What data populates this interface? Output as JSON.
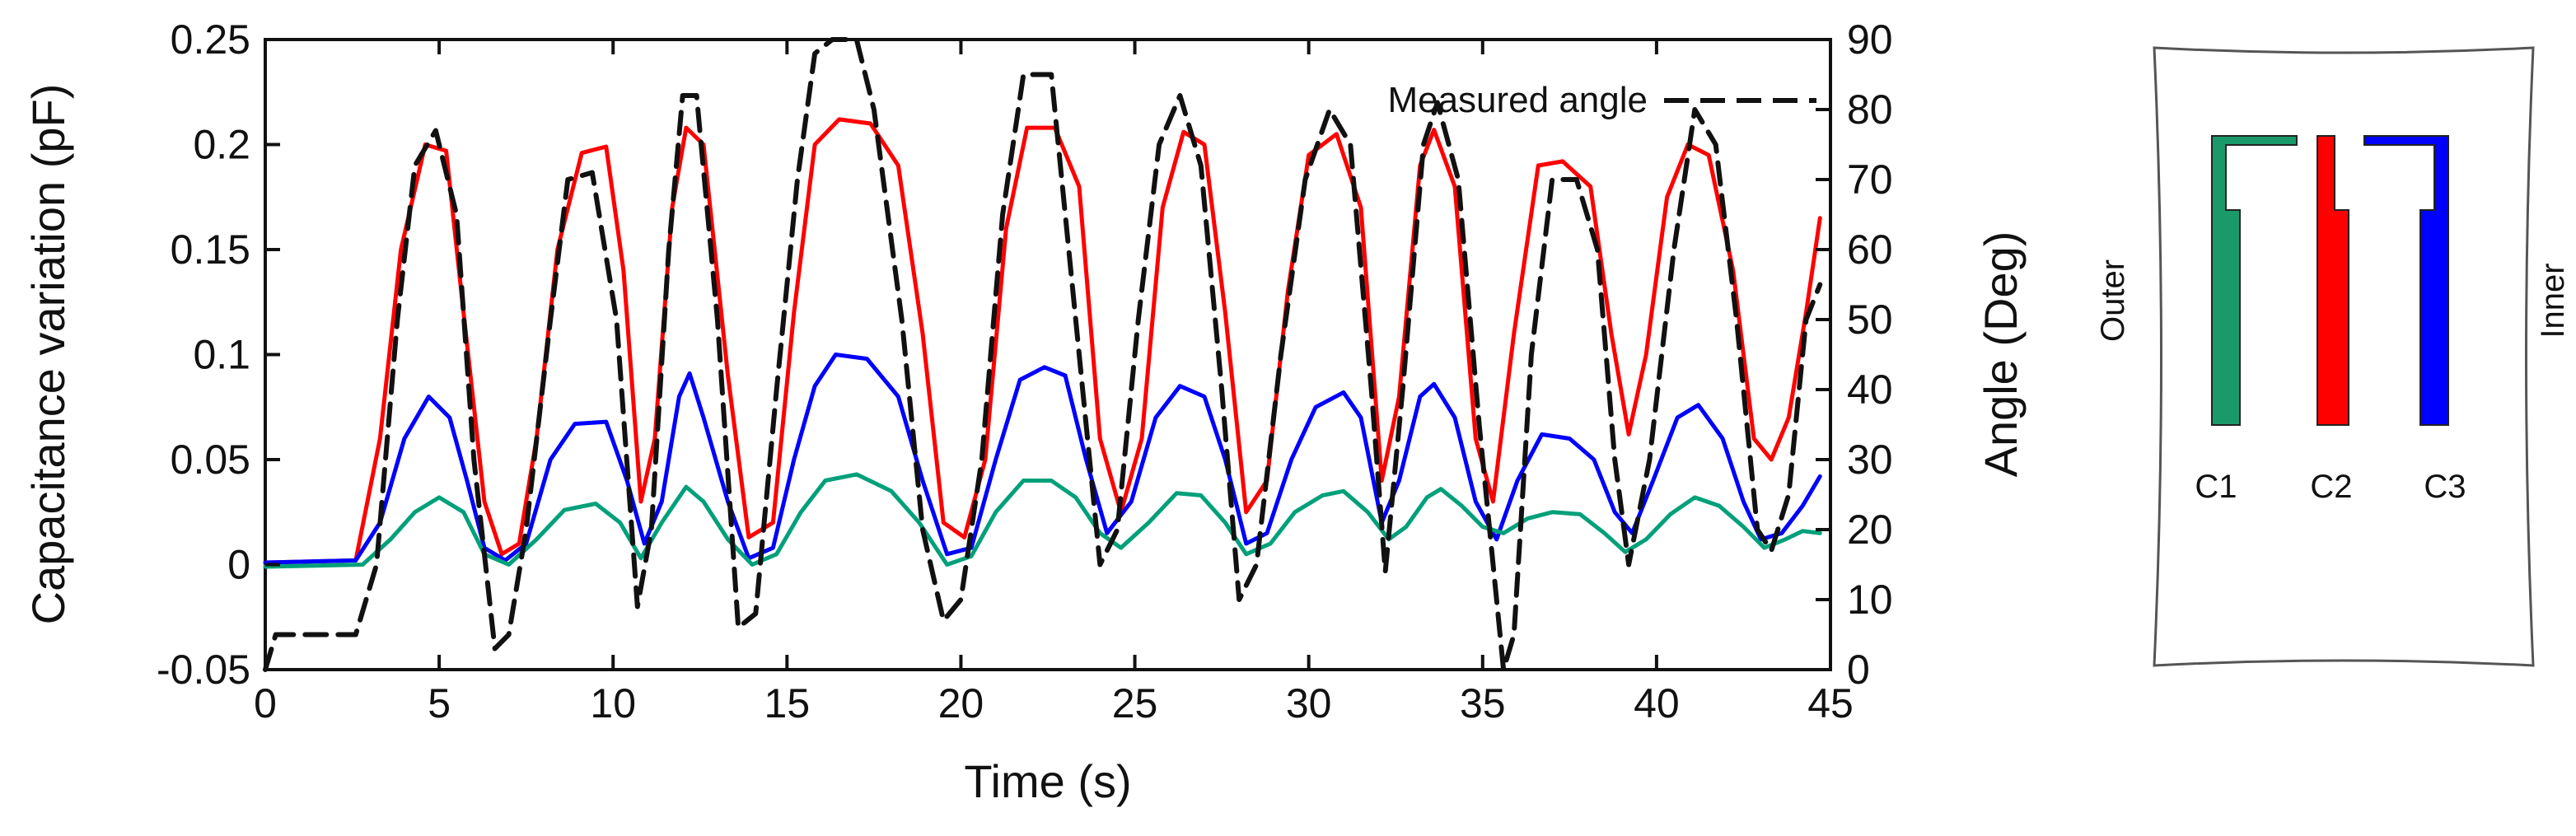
{
  "chart_data": {
    "type": "line",
    "title": "",
    "xlabel": "Time (s)",
    "ylabel": "Capacitance variation (pF)",
    "y2label": "Angle (Deg)",
    "xlim": [
      0,
      45
    ],
    "ylim": [
      -0.05,
      0.25
    ],
    "y2lim": [
      0,
      90
    ],
    "xticks": [
      0,
      5,
      10,
      15,
      20,
      25,
      30,
      35,
      40,
      45
    ],
    "xtick_labels": [
      "0",
      "5",
      "10",
      "15",
      "20",
      "25",
      "30",
      "35",
      "40",
      "45"
    ],
    "yticks": [
      -0.05,
      0,
      0.05,
      0.1,
      0.15,
      0.2,
      0.25
    ],
    "ytick_labels": [
      "-0.05",
      "0",
      "0.05",
      "0.1",
      "0.15",
      "0.2",
      "0.25"
    ],
    "y2ticks": [
      0,
      10,
      20,
      30,
      40,
      50,
      60,
      70,
      80,
      90
    ],
    "y2tick_labels": [
      "0",
      "10",
      "20",
      "30",
      "40",
      "50",
      "60",
      "70",
      "80",
      "90"
    ],
    "grid": false,
    "legend_position": "top-right",
    "legend_label": "Measured angle",
    "series": [
      {
        "name": "C2",
        "color": "#ff0000",
        "axis": "left",
        "style": "solid",
        "points": [
          [
            0,
            0.001
          ],
          [
            2.6,
            0.002
          ],
          [
            3.3,
            0.06
          ],
          [
            3.9,
            0.15
          ],
          [
            4.6,
            0.2
          ],
          [
            5.2,
            0.197
          ],
          [
            5.7,
            0.12
          ],
          [
            6.3,
            0.03
          ],
          [
            6.8,
            0.005
          ],
          [
            7.3,
            0.01
          ],
          [
            7.8,
            0.06
          ],
          [
            8.4,
            0.15
          ],
          [
            9.1,
            0.196
          ],
          [
            9.8,
            0.199
          ],
          [
            10.3,
            0.14
          ],
          [
            10.8,
            0.03
          ],
          [
            11.2,
            0.06
          ],
          [
            11.7,
            0.17
          ],
          [
            12.1,
            0.208
          ],
          [
            12.6,
            0.2
          ],
          [
            13.3,
            0.09
          ],
          [
            13.9,
            0.013
          ],
          [
            14.6,
            0.02
          ],
          [
            15.2,
            0.12
          ],
          [
            15.8,
            0.2
          ],
          [
            16.5,
            0.212
          ],
          [
            17.4,
            0.21
          ],
          [
            18.2,
            0.19
          ],
          [
            18.9,
            0.11
          ],
          [
            19.5,
            0.02
          ],
          [
            20.1,
            0.013
          ],
          [
            20.7,
            0.05
          ],
          [
            21.3,
            0.16
          ],
          [
            21.9,
            0.208
          ],
          [
            22.7,
            0.208
          ],
          [
            23.4,
            0.18
          ],
          [
            24.0,
            0.06
          ],
          [
            24.6,
            0.025
          ],
          [
            25.2,
            0.06
          ],
          [
            25.8,
            0.17
          ],
          [
            26.4,
            0.206
          ],
          [
            27.0,
            0.2
          ],
          [
            27.6,
            0.12
          ],
          [
            28.2,
            0.025
          ],
          [
            28.8,
            0.04
          ],
          [
            29.4,
            0.13
          ],
          [
            30.0,
            0.195
          ],
          [
            30.8,
            0.205
          ],
          [
            31.5,
            0.17
          ],
          [
            32.1,
            0.04
          ],
          [
            32.6,
            0.08
          ],
          [
            33.2,
            0.19
          ],
          [
            33.6,
            0.207
          ],
          [
            34.2,
            0.18
          ],
          [
            34.8,
            0.06
          ],
          [
            35.3,
            0.03
          ],
          [
            35.9,
            0.11
          ],
          [
            36.6,
            0.19
          ],
          [
            37.3,
            0.192
          ],
          [
            38.1,
            0.18
          ],
          [
            38.7,
            0.11
          ],
          [
            39.2,
            0.062
          ],
          [
            39.7,
            0.1
          ],
          [
            40.3,
            0.175
          ],
          [
            40.9,
            0.2
          ],
          [
            41.5,
            0.195
          ],
          [
            42.2,
            0.14
          ],
          [
            42.8,
            0.06
          ],
          [
            43.3,
            0.05
          ],
          [
            43.8,
            0.07
          ],
          [
            44.3,
            0.12
          ],
          [
            44.7,
            0.165
          ]
        ]
      },
      {
        "name": "C3",
        "color": "#0000ff",
        "axis": "left",
        "style": "solid",
        "points": [
          [
            0,
            0.001
          ],
          [
            2.6,
            0.002
          ],
          [
            3.3,
            0.02
          ],
          [
            4.0,
            0.06
          ],
          [
            4.7,
            0.08
          ],
          [
            5.3,
            0.07
          ],
          [
            5.8,
            0.04
          ],
          [
            6.3,
            0.008
          ],
          [
            6.9,
            0.002
          ],
          [
            7.5,
            0.01
          ],
          [
            8.2,
            0.05
          ],
          [
            8.9,
            0.067
          ],
          [
            9.8,
            0.068
          ],
          [
            10.4,
            0.04
          ],
          [
            10.9,
            0.01
          ],
          [
            11.4,
            0.03
          ],
          [
            11.9,
            0.08
          ],
          [
            12.2,
            0.091
          ],
          [
            12.6,
            0.07
          ],
          [
            13.3,
            0.03
          ],
          [
            13.9,
            0.003
          ],
          [
            14.6,
            0.008
          ],
          [
            15.2,
            0.05
          ],
          [
            15.8,
            0.085
          ],
          [
            16.4,
            0.1
          ],
          [
            17.3,
            0.098
          ],
          [
            18.2,
            0.08
          ],
          [
            18.9,
            0.04
          ],
          [
            19.6,
            0.005
          ],
          [
            20.3,
            0.008
          ],
          [
            21.0,
            0.05
          ],
          [
            21.7,
            0.088
          ],
          [
            22.4,
            0.094
          ],
          [
            23.0,
            0.09
          ],
          [
            23.6,
            0.05
          ],
          [
            24.2,
            0.015
          ],
          [
            24.9,
            0.03
          ],
          [
            25.6,
            0.07
          ],
          [
            26.3,
            0.085
          ],
          [
            27.0,
            0.08
          ],
          [
            27.6,
            0.05
          ],
          [
            28.2,
            0.01
          ],
          [
            28.8,
            0.015
          ],
          [
            29.5,
            0.05
          ],
          [
            30.2,
            0.075
          ],
          [
            31.0,
            0.082
          ],
          [
            31.5,
            0.07
          ],
          [
            32.1,
            0.02
          ],
          [
            32.6,
            0.04
          ],
          [
            33.2,
            0.08
          ],
          [
            33.6,
            0.086
          ],
          [
            34.2,
            0.07
          ],
          [
            34.8,
            0.03
          ],
          [
            35.4,
            0.012
          ],
          [
            36.0,
            0.04
          ],
          [
            36.7,
            0.062
          ],
          [
            37.5,
            0.06
          ],
          [
            38.2,
            0.05
          ],
          [
            38.8,
            0.025
          ],
          [
            39.3,
            0.015
          ],
          [
            39.9,
            0.04
          ],
          [
            40.6,
            0.07
          ],
          [
            41.2,
            0.076
          ],
          [
            41.9,
            0.06
          ],
          [
            42.5,
            0.03
          ],
          [
            43.0,
            0.012
          ],
          [
            43.6,
            0.015
          ],
          [
            44.2,
            0.028
          ],
          [
            44.7,
            0.042
          ]
        ]
      },
      {
        "name": "C1",
        "color": "#00a07a",
        "axis": "left",
        "style": "solid",
        "points": [
          [
            0,
            -0.001
          ],
          [
            2.8,
            0.0
          ],
          [
            3.6,
            0.012
          ],
          [
            4.3,
            0.025
          ],
          [
            5.0,
            0.032
          ],
          [
            5.7,
            0.025
          ],
          [
            6.3,
            0.005
          ],
          [
            7.0,
            0.0
          ],
          [
            7.8,
            0.012
          ],
          [
            8.6,
            0.026
          ],
          [
            9.5,
            0.029
          ],
          [
            10.2,
            0.02
          ],
          [
            10.8,
            0.003
          ],
          [
            11.4,
            0.02
          ],
          [
            12.1,
            0.037
          ],
          [
            12.6,
            0.03
          ],
          [
            13.3,
            0.012
          ],
          [
            14.0,
            0.0
          ],
          [
            14.7,
            0.005
          ],
          [
            15.4,
            0.025
          ],
          [
            16.1,
            0.04
          ],
          [
            17.0,
            0.043
          ],
          [
            18.0,
            0.035
          ],
          [
            18.8,
            0.02
          ],
          [
            19.6,
            0.0
          ],
          [
            20.3,
            0.004
          ],
          [
            21.0,
            0.025
          ],
          [
            21.8,
            0.04
          ],
          [
            22.6,
            0.04
          ],
          [
            23.3,
            0.032
          ],
          [
            24.0,
            0.015
          ],
          [
            24.6,
            0.008
          ],
          [
            25.4,
            0.02
          ],
          [
            26.2,
            0.034
          ],
          [
            26.9,
            0.033
          ],
          [
            27.6,
            0.02
          ],
          [
            28.2,
            0.005
          ],
          [
            28.9,
            0.01
          ],
          [
            29.6,
            0.025
          ],
          [
            30.4,
            0.033
          ],
          [
            31.0,
            0.035
          ],
          [
            31.7,
            0.025
          ],
          [
            32.3,
            0.012
          ],
          [
            32.8,
            0.018
          ],
          [
            33.4,
            0.032
          ],
          [
            33.8,
            0.036
          ],
          [
            34.4,
            0.028
          ],
          [
            35.0,
            0.018
          ],
          [
            35.6,
            0.015
          ],
          [
            36.3,
            0.022
          ],
          [
            37.0,
            0.025
          ],
          [
            37.8,
            0.024
          ],
          [
            38.5,
            0.015
          ],
          [
            39.1,
            0.006
          ],
          [
            39.7,
            0.012
          ],
          [
            40.4,
            0.024
          ],
          [
            41.1,
            0.032
          ],
          [
            41.8,
            0.028
          ],
          [
            42.5,
            0.018
          ],
          [
            43.1,
            0.008
          ],
          [
            43.7,
            0.012
          ],
          [
            44.2,
            0.016
          ],
          [
            44.7,
            0.015
          ]
        ]
      },
      {
        "name": "Measured angle",
        "color": "#111111",
        "axis": "right",
        "style": "dashed",
        "points": [
          [
            0,
            0
          ],
          [
            0.3,
            5
          ],
          [
            2.6,
            5
          ],
          [
            3.2,
            15
          ],
          [
            3.8,
            50
          ],
          [
            4.3,
            72
          ],
          [
            4.9,
            77
          ],
          [
            5.5,
            65
          ],
          [
            6.0,
            30
          ],
          [
            6.6,
            3
          ],
          [
            7.0,
            5
          ],
          [
            7.5,
            20
          ],
          [
            8.2,
            50
          ],
          [
            8.7,
            70
          ],
          [
            9.4,
            71
          ],
          [
            10.1,
            50
          ],
          [
            10.7,
            9
          ],
          [
            11.1,
            20
          ],
          [
            11.6,
            60
          ],
          [
            12.0,
            82
          ],
          [
            12.4,
            82
          ],
          [
            13.0,
            50
          ],
          [
            13.6,
            6
          ],
          [
            14.1,
            8
          ],
          [
            14.7,
            40
          ],
          [
            15.3,
            70
          ],
          [
            15.8,
            88
          ],
          [
            16.3,
            90
          ],
          [
            17.0,
            90
          ],
          [
            17.5,
            80
          ],
          [
            18.3,
            50
          ],
          [
            18.9,
            20
          ],
          [
            19.5,
            7
          ],
          [
            20.0,
            10
          ],
          [
            20.6,
            30
          ],
          [
            21.2,
            65
          ],
          [
            21.8,
            85
          ],
          [
            22.6,
            85
          ],
          [
            23.3,
            50
          ],
          [
            24.0,
            15
          ],
          [
            24.5,
            20
          ],
          [
            25.1,
            50
          ],
          [
            25.7,
            75
          ],
          [
            26.3,
            82
          ],
          [
            26.9,
            72
          ],
          [
            27.5,
            40
          ],
          [
            28.0,
            10
          ],
          [
            28.5,
            15
          ],
          [
            29.2,
            45
          ],
          [
            29.9,
            70
          ],
          [
            30.6,
            80
          ],
          [
            31.2,
            75
          ],
          [
            31.8,
            40
          ],
          [
            32.2,
            14
          ],
          [
            32.7,
            40
          ],
          [
            33.3,
            75
          ],
          [
            33.7,
            81
          ],
          [
            34.3,
            70
          ],
          [
            34.9,
            35
          ],
          [
            35.4,
            10
          ],
          [
            35.6,
            0
          ],
          [
            35.9,
            5
          ],
          [
            36.4,
            45
          ],
          [
            37.0,
            70
          ],
          [
            37.7,
            70
          ],
          [
            38.3,
            60
          ],
          [
            38.8,
            30
          ],
          [
            39.2,
            15
          ],
          [
            39.8,
            30
          ],
          [
            40.5,
            60
          ],
          [
            41.1,
            80
          ],
          [
            41.7,
            75
          ],
          [
            42.3,
            50
          ],
          [
            42.9,
            20
          ],
          [
            43.3,
            17
          ],
          [
            43.8,
            25
          ],
          [
            44.3,
            50
          ],
          [
            44.7,
            55
          ]
        ]
      }
    ]
  },
  "schematic": {
    "outer_label": "Outer",
    "inner_label": "Inner",
    "electrodes": [
      {
        "label": "C1",
        "color": "#1a9a6a"
      },
      {
        "label": "C2",
        "color": "#ff0000"
      },
      {
        "label": "C3",
        "color": "#0000ff"
      }
    ]
  }
}
